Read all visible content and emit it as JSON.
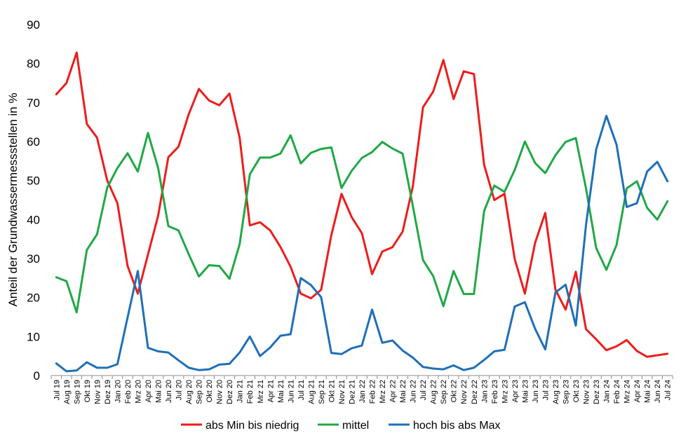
{
  "chart_data": {
    "type": "line",
    "title": "",
    "xlabel": "",
    "ylabel": "Anteil der Grundwassermessstellen  in %",
    "ylim": [
      0,
      90
    ],
    "yticks": [
      0,
      10,
      20,
      30,
      40,
      50,
      60,
      70,
      80,
      90
    ],
    "grid": false,
    "legend_position": "bottom",
    "categories": [
      "Jul 19",
      "Aug 19",
      "Sep 19",
      "Okt 19",
      "Nov 19",
      "Dez 19",
      "Jan 20",
      "Feb 20",
      "Mrz 20",
      "Apr 20",
      "Mai 20",
      "Jun 20",
      "Jul 20",
      "Aug 20",
      "Sep 20",
      "Okt 20",
      "Nov 20",
      "Dez 20",
      "Jan 21",
      "Feb 21",
      "Mrz 21",
      "Apr 21",
      "Mai 21",
      "Jun 21",
      "Jul 21",
      "Aug 21",
      "Sep 21",
      "Okt 21",
      "Nov 21",
      "Dez 21",
      "Jan 22",
      "Feb 22",
      "Mrz 22",
      "Apr 22",
      "Mai 22",
      "Jun 22",
      "Jul 22",
      "Aug 22",
      "Sep 22",
      "Okt 22",
      "Nov 22",
      "Dez 22",
      "Jan 23",
      "Feb 23",
      "Mrz 23",
      "Apr 23",
      "Mai 23",
      "Jun 23",
      "Jul 23",
      "Aug 23",
      "Sep 23",
      "Okt 23",
      "Nov 23",
      "Dez 23",
      "Jan 24",
      "Feb 24",
      "Mrz 24",
      "Apr 24",
      "Mai 24",
      "Jun 24",
      "Jul 24"
    ],
    "series": [
      {
        "name": "abs Min bis niedrig",
        "color": "#ee1c1c",
        "values": [
          72.1,
          75.0,
          82.8,
          64.5,
          61.0,
          50.0,
          44.2,
          28.1,
          21.0,
          31.0,
          41.0,
          56.0,
          58.7,
          67.0,
          73.5,
          70.5,
          69.3,
          72.3,
          61.0,
          38.5,
          39.3,
          37.2,
          33.0,
          27.9,
          21.0,
          19.8,
          22.0,
          36.0,
          46.6,
          40.6,
          36.5,
          26.0,
          31.8,
          32.9,
          36.9,
          48.5,
          68.8,
          72.8,
          80.9,
          70.9,
          78.0,
          77.3,
          54.0,
          45.0,
          46.6,
          29.9,
          21.0,
          34.0,
          41.7,
          22.0,
          16.9,
          26.6,
          11.9,
          9.3,
          6.5,
          7.5,
          9.1,
          6.3,
          4.8,
          5.2,
          5.6
        ]
      },
      {
        "name": "mittel",
        "color": "#1fa845",
        "values": [
          25.2,
          24.2,
          16.2,
          32.2,
          36.2,
          48.2,
          53.2,
          57.0,
          52.3,
          62.2,
          53.2,
          38.3,
          37.2,
          31.1,
          25.4,
          28.3,
          28.1,
          24.8,
          33.7,
          51.6,
          55.9,
          55.9,
          56.9,
          61.6,
          54.4,
          57.1,
          58.1,
          58.5,
          48.1,
          52.5,
          55.8,
          57.3,
          59.9,
          58.2,
          56.9,
          43.5,
          29.6,
          25.5,
          17.8,
          26.8,
          20.9,
          20.9,
          42.2,
          48.7,
          47.1,
          52.7,
          60.0,
          54.5,
          51.9,
          56.5,
          59.9,
          60.9,
          48.0,
          32.7,
          27.1,
          33.5,
          48.0,
          49.8,
          43.0,
          40.0,
          44.7
        ]
      },
      {
        "name": "hoch bis abs Max",
        "color": "#1f6fb8",
        "values": [
          3.1,
          1.1,
          1.3,
          3.4,
          2.0,
          2.0,
          2.9,
          14.9,
          26.8,
          7.1,
          6.2,
          5.9,
          3.9,
          2.0,
          1.4,
          1.6,
          2.8,
          3.0,
          5.9,
          10.0,
          5.0,
          7.2,
          10.2,
          10.6,
          25.0,
          23.2,
          20.1,
          5.8,
          5.5,
          7.0,
          7.7,
          16.9,
          8.4,
          9.0,
          6.4,
          4.6,
          2.2,
          1.8,
          1.6,
          2.6,
          1.4,
          2.0,
          4.0,
          6.2,
          6.6,
          17.7,
          18.8,
          12.0,
          6.7,
          21.3,
          23.3,
          12.8,
          38.6,
          58.0,
          66.6,
          59.2,
          43.2,
          44.2,
          52.3,
          54.8,
          49.8
        ]
      }
    ]
  }
}
